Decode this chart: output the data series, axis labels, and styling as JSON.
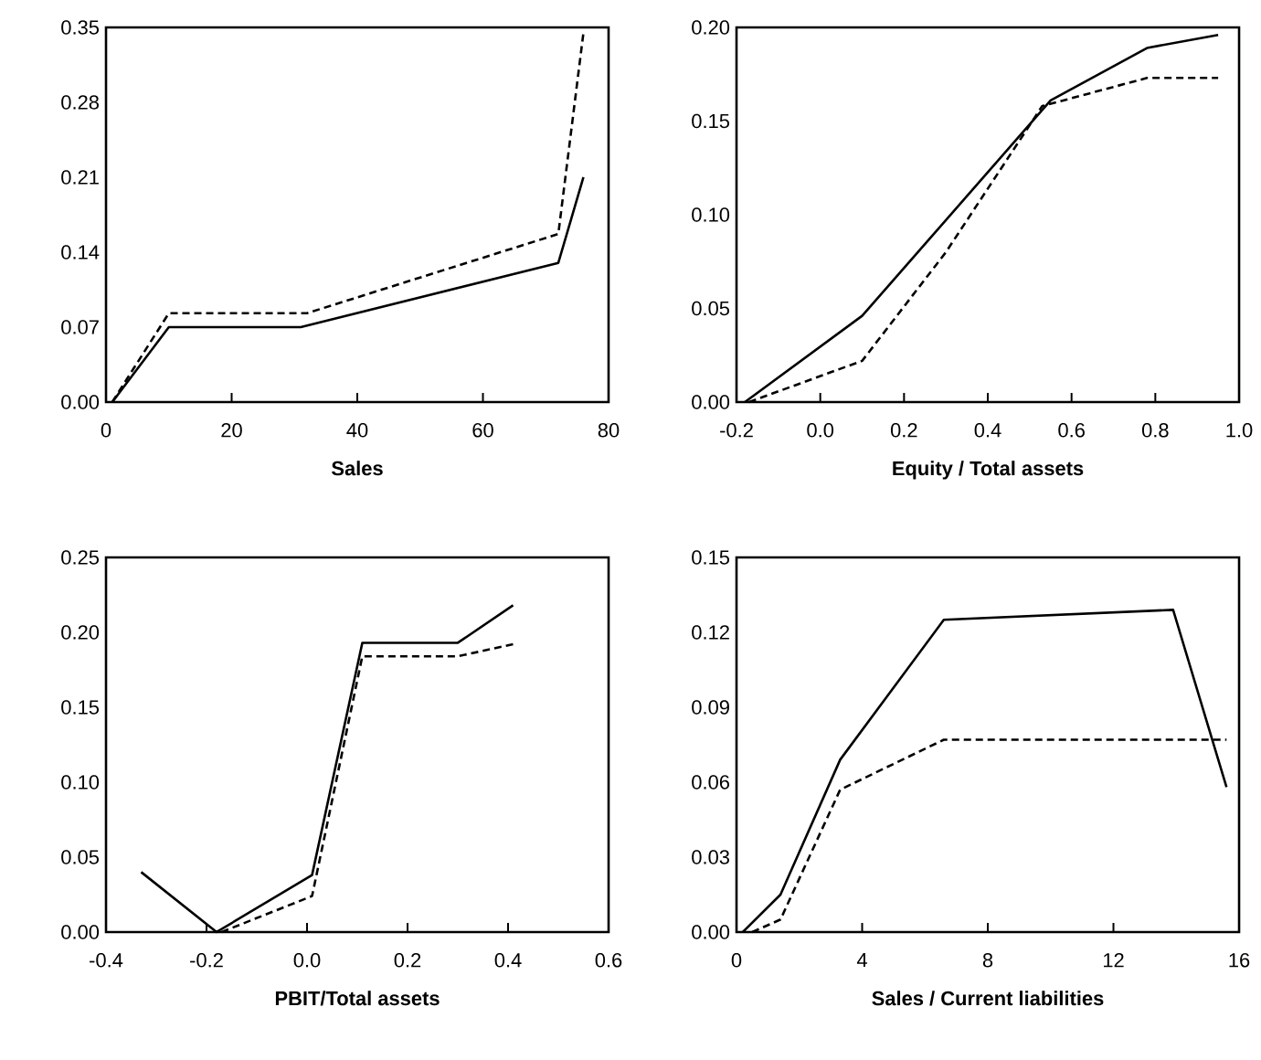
{
  "chart_data": [
    {
      "type": "line",
      "xlabel": "Sales",
      "xlim": [
        0,
        80
      ],
      "xticks": [
        0,
        20,
        40,
        60,
        80
      ],
      "ylim": [
        0,
        0.35
      ],
      "yticks": [
        {
          "value": 0,
          "label": "0.00"
        },
        {
          "value": 0.07,
          "label": "0.07"
        },
        {
          "value": 0.14,
          "label": "0.14"
        },
        {
          "value": 0.21,
          "label": "0.21"
        },
        {
          "value": 0.28,
          "label": "0.28"
        },
        {
          "value": 0.35,
          "label": "0.35"
        }
      ],
      "series": [
        {
          "color": "#000000",
          "line_style": "solid",
          "x": [
            1,
            10,
            31,
            72,
            76
          ],
          "values": [
            0,
            0.07,
            0.07,
            0.13,
            0.21
          ]
        },
        {
          "color": "#000000",
          "line_style": "dashed",
          "x": [
            1,
            10,
            32,
            72,
            76
          ],
          "values": [
            0,
            0.083,
            0.083,
            0.157,
            0.345
          ]
        }
      ]
    },
    {
      "type": "line",
      "xlabel": "Equity / Total assets",
      "xlim": [
        -0.2,
        1.0
      ],
      "xticks": [
        {
          "value": -0.2,
          "label": "-0.2"
        },
        {
          "value": 0,
          "label": "0.0"
        },
        {
          "value": 0.2,
          "label": "0.2"
        },
        {
          "value": 0.4,
          "label": "0.4"
        },
        {
          "value": 0.6,
          "label": "0.6"
        },
        {
          "value": 0.8,
          "label": "0.8"
        },
        {
          "value": 1.0,
          "label": "1.0"
        }
      ],
      "ylim": [
        0,
        0.2
      ],
      "yticks": [
        {
          "value": 0,
          "label": "0.00"
        },
        {
          "value": 0.05,
          "label": "0.05"
        },
        {
          "value": 0.1,
          "label": "0.10"
        },
        {
          "value": 0.15,
          "label": "0.15"
        },
        {
          "value": 0.2,
          "label": "0.20"
        }
      ],
      "series": [
        {
          "color": "#000000",
          "line_style": "solid",
          "x": [
            -0.18,
            0.1,
            0.55,
            0.78,
            0.95
          ],
          "values": [
            0,
            0.046,
            0.161,
            0.189,
            0.196
          ]
        },
        {
          "color": "#000000",
          "line_style": "dashed",
          "x": [
            -0.17,
            0.1,
            0.3,
            0.53,
            0.78,
            0.95
          ],
          "values": [
            0,
            0.022,
            0.08,
            0.158,
            0.173,
            0.173
          ]
        }
      ]
    },
    {
      "type": "line",
      "xlabel": "PBIT/Total assets",
      "xlim": [
        -0.4,
        0.6
      ],
      "xticks": [
        {
          "value": -0.4,
          "label": "-0.4"
        },
        {
          "value": -0.2,
          "label": "-0.2"
        },
        {
          "value": 0,
          "label": "0.0"
        },
        {
          "value": 0.2,
          "label": "0.2"
        },
        {
          "value": 0.4,
          "label": "0.4"
        },
        {
          "value": 0.6,
          "label": "0.6"
        }
      ],
      "ylim": [
        0,
        0.25
      ],
      "yticks": [
        {
          "value": 0,
          "label": "0.00"
        },
        {
          "value": 0.05,
          "label": "0.05"
        },
        {
          "value": 0.1,
          "label": "0.10"
        },
        {
          "value": 0.15,
          "label": "0.15"
        },
        {
          "value": 0.2,
          "label": "0.20"
        },
        {
          "value": 0.25,
          "label": "0.25"
        }
      ],
      "series": [
        {
          "color": "#000000",
          "line_style": "solid",
          "x": [
            -0.33,
            -0.18,
            0.01,
            0.11,
            0.3,
            0.41
          ],
          "values": [
            0.04,
            0,
            0.038,
            0.193,
            0.193,
            0.218
          ]
        },
        {
          "color": "#000000",
          "line_style": "dashed",
          "x": [
            -0.17,
            0.01,
            0.11,
            0.3,
            0.41
          ],
          "values": [
            0,
            0.024,
            0.184,
            0.184,
            0.192
          ]
        }
      ]
    },
    {
      "type": "line",
      "xlabel": "Sales / Current liabilities",
      "xlim": [
        0,
        16
      ],
      "xticks": [
        0,
        4,
        8,
        12,
        16
      ],
      "ylim": [
        0,
        0.15
      ],
      "yticks": [
        {
          "value": 0,
          "label": "0.00"
        },
        {
          "value": 0.03,
          "label": "0.03"
        },
        {
          "value": 0.06,
          "label": "0.06"
        },
        {
          "value": 0.09,
          "label": "0.09"
        },
        {
          "value": 0.12,
          "label": "0.12"
        },
        {
          "value": 0.15,
          "label": "0.15"
        }
      ],
      "series": [
        {
          "color": "#000000",
          "line_style": "solid",
          "x": [
            0.2,
            1.4,
            3.3,
            6.6,
            13.9,
            15.6
          ],
          "values": [
            0,
            0.015,
            0.069,
            0.125,
            0.129,
            0.058
          ]
        },
        {
          "color": "#000000",
          "line_style": "dashed",
          "x": [
            0.5,
            1.4,
            3.3,
            6.6,
            15.6
          ],
          "values": [
            0,
            0.005,
            0.057,
            0.077,
            0.077
          ]
        }
      ]
    }
  ]
}
